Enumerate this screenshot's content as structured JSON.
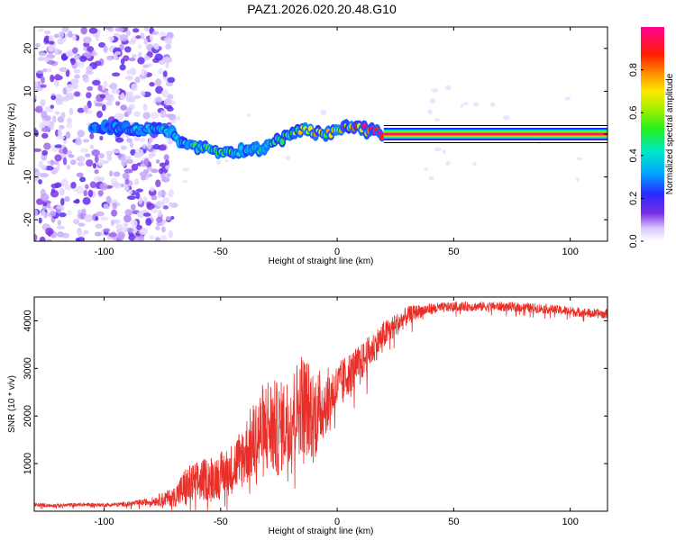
{
  "figure_title": "PAZ1.2026.020.20.48.G10",
  "colors": {
    "snr_line": "#e8302a",
    "frame": "#000000",
    "background": "#ffffff"
  },
  "chart_data": [
    {
      "type": "heatmap",
      "title": "PAZ1.2026.020.20.48.G10",
      "xlabel": "Height of straight line (km)",
      "ylabel": "Frequency (Hz)",
      "xlim": [
        -130,
        116
      ],
      "ylim": [
        -25,
        25
      ],
      "xticks": [
        -100,
        -50,
        0,
        50,
        100
      ],
      "yticks": [
        -20,
        -10,
        0,
        10,
        20
      ],
      "xtick_labels": [
        "-100",
        "-50",
        "0",
        "50",
        "100"
      ],
      "ytick_labels": [
        "-20",
        "-10",
        "0",
        "10",
        "20"
      ],
      "colorbar": {
        "label": "Normalized spectral amplitude",
        "range": [
          0.0,
          1.0
        ],
        "ticks": [
          0.0,
          0.2,
          0.4,
          0.6,
          0.8
        ],
        "tick_labels": [
          "0.0",
          "0.2",
          "0.4",
          "0.6",
          "0.8"
        ],
        "colormap": "rainbow (white-violet-blue-cyan-green-yellow-red-magenta)"
      },
      "ridge": {
        "description": "Dominant frequency ridge vs. height",
        "x": [
          -100,
          -90,
          -80,
          -72,
          -66,
          -60,
          -55,
          -50,
          -45,
          -40,
          -35,
          -30,
          -25,
          -20,
          -15,
          -10,
          -5,
          0,
          5,
          10,
          15,
          20,
          30,
          50,
          80,
          116
        ],
        "y": [
          1.5,
          1.2,
          1.0,
          0.5,
          -2.5,
          -3.0,
          -3.2,
          -3.8,
          -4.0,
          -3.8,
          -3.5,
          -3.0,
          -1.5,
          0.0,
          1.0,
          0.5,
          0.0,
          0.5,
          2.0,
          1.5,
          0.5,
          0.0,
          0.0,
          0.0,
          0.0,
          0.0
        ],
        "amplitude": [
          0.3,
          0.35,
          0.4,
          0.45,
          0.4,
          0.5,
          0.5,
          0.55,
          0.5,
          0.45,
          0.45,
          0.45,
          0.55,
          0.6,
          0.7,
          0.75,
          0.75,
          0.8,
          0.85,
          0.9,
          0.95,
          1.0,
          1.0,
          1.0,
          1.0,
          1.0
        ]
      },
      "noise_region": {
        "x_range": [
          -130,
          -70
        ],
        "y_range": [
          -25,
          25
        ],
        "amplitude": 0.15
      }
    },
    {
      "type": "line",
      "xlabel": "Height of straight line (km)",
      "ylabel": "SNR (10 * v/v)",
      "xlim": [
        -130,
        116
      ],
      "ylim": [
        0,
        4500
      ],
      "xticks": [
        -100,
        -50,
        0,
        50,
        100
      ],
      "yticks": [
        1000,
        2000,
        3000,
        4000
      ],
      "xtick_labels": [
        "-100",
        "-50",
        "0",
        "50",
        "100"
      ],
      "ytick_labels": [
        "1000",
        "2000",
        "3000",
        "4000"
      ],
      "series": [
        {
          "name": "SNR",
          "color": "#e8302a",
          "x": [
            -130,
            -120,
            -110,
            -100,
            -90,
            -80,
            -75,
            -70,
            -65,
            -60,
            -55,
            -50,
            -45,
            -40,
            -35,
            -30,
            -25,
            -20,
            -15,
            -10,
            -5,
            0,
            5,
            10,
            15,
            20,
            25,
            30,
            35,
            40,
            50,
            60,
            70,
            80,
            90,
            100,
            110,
            116
          ],
          "y": [
            130,
            120,
            140,
            130,
            150,
            200,
            250,
            300,
            500,
            600,
            700,
            750,
            900,
            1200,
            1500,
            1800,
            1700,
            2000,
            2300,
            2000,
            2300,
            2600,
            2900,
            3100,
            3400,
            3700,
            3900,
            4100,
            4200,
            4250,
            4300,
            4300,
            4300,
            4280,
            4250,
            4200,
            4150,
            4150
          ],
          "noise_amplitude": [
            40,
            40,
            40,
            40,
            50,
            80,
            150,
            200,
            450,
            450,
            450,
            500,
            550,
            700,
            900,
            1100,
            1000,
            900,
            1100,
            1000,
            700,
            500,
            450,
            400,
            350,
            300,
            250,
            200,
            150,
            120,
            100,
            100,
            100,
            100,
            100,
            100,
            100,
            100
          ]
        }
      ]
    }
  ]
}
